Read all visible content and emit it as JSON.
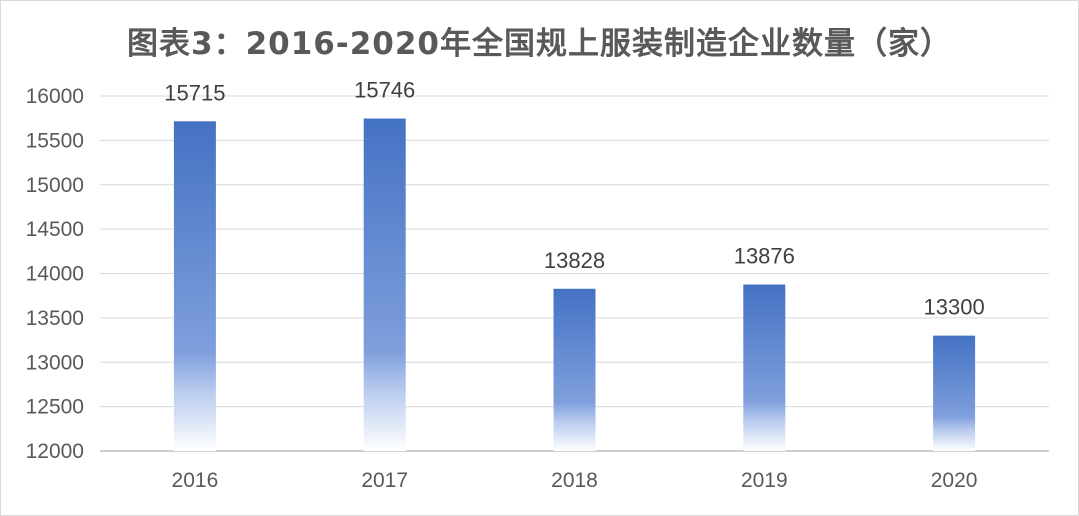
{
  "chart_data": {
    "type": "bar",
    "title": "图表3：2016-2020年全国规上服装制造企业数量（家）",
    "categories": [
      "2016",
      "2017",
      "2018",
      "2019",
      "2020"
    ],
    "values": [
      15715,
      15746,
      13828,
      13876,
      13300
    ],
    "data_labels": [
      "15715",
      "15746",
      "13828",
      "13876",
      "13300"
    ],
    "yticks": [
      "12000",
      "12500",
      "13000",
      "13500",
      "14000",
      "14500",
      "15000",
      "15500",
      "16000"
    ],
    "ylim": [
      12000,
      16000
    ],
    "grid": true,
    "legend": "none",
    "bar_color": "#4472c4"
  }
}
